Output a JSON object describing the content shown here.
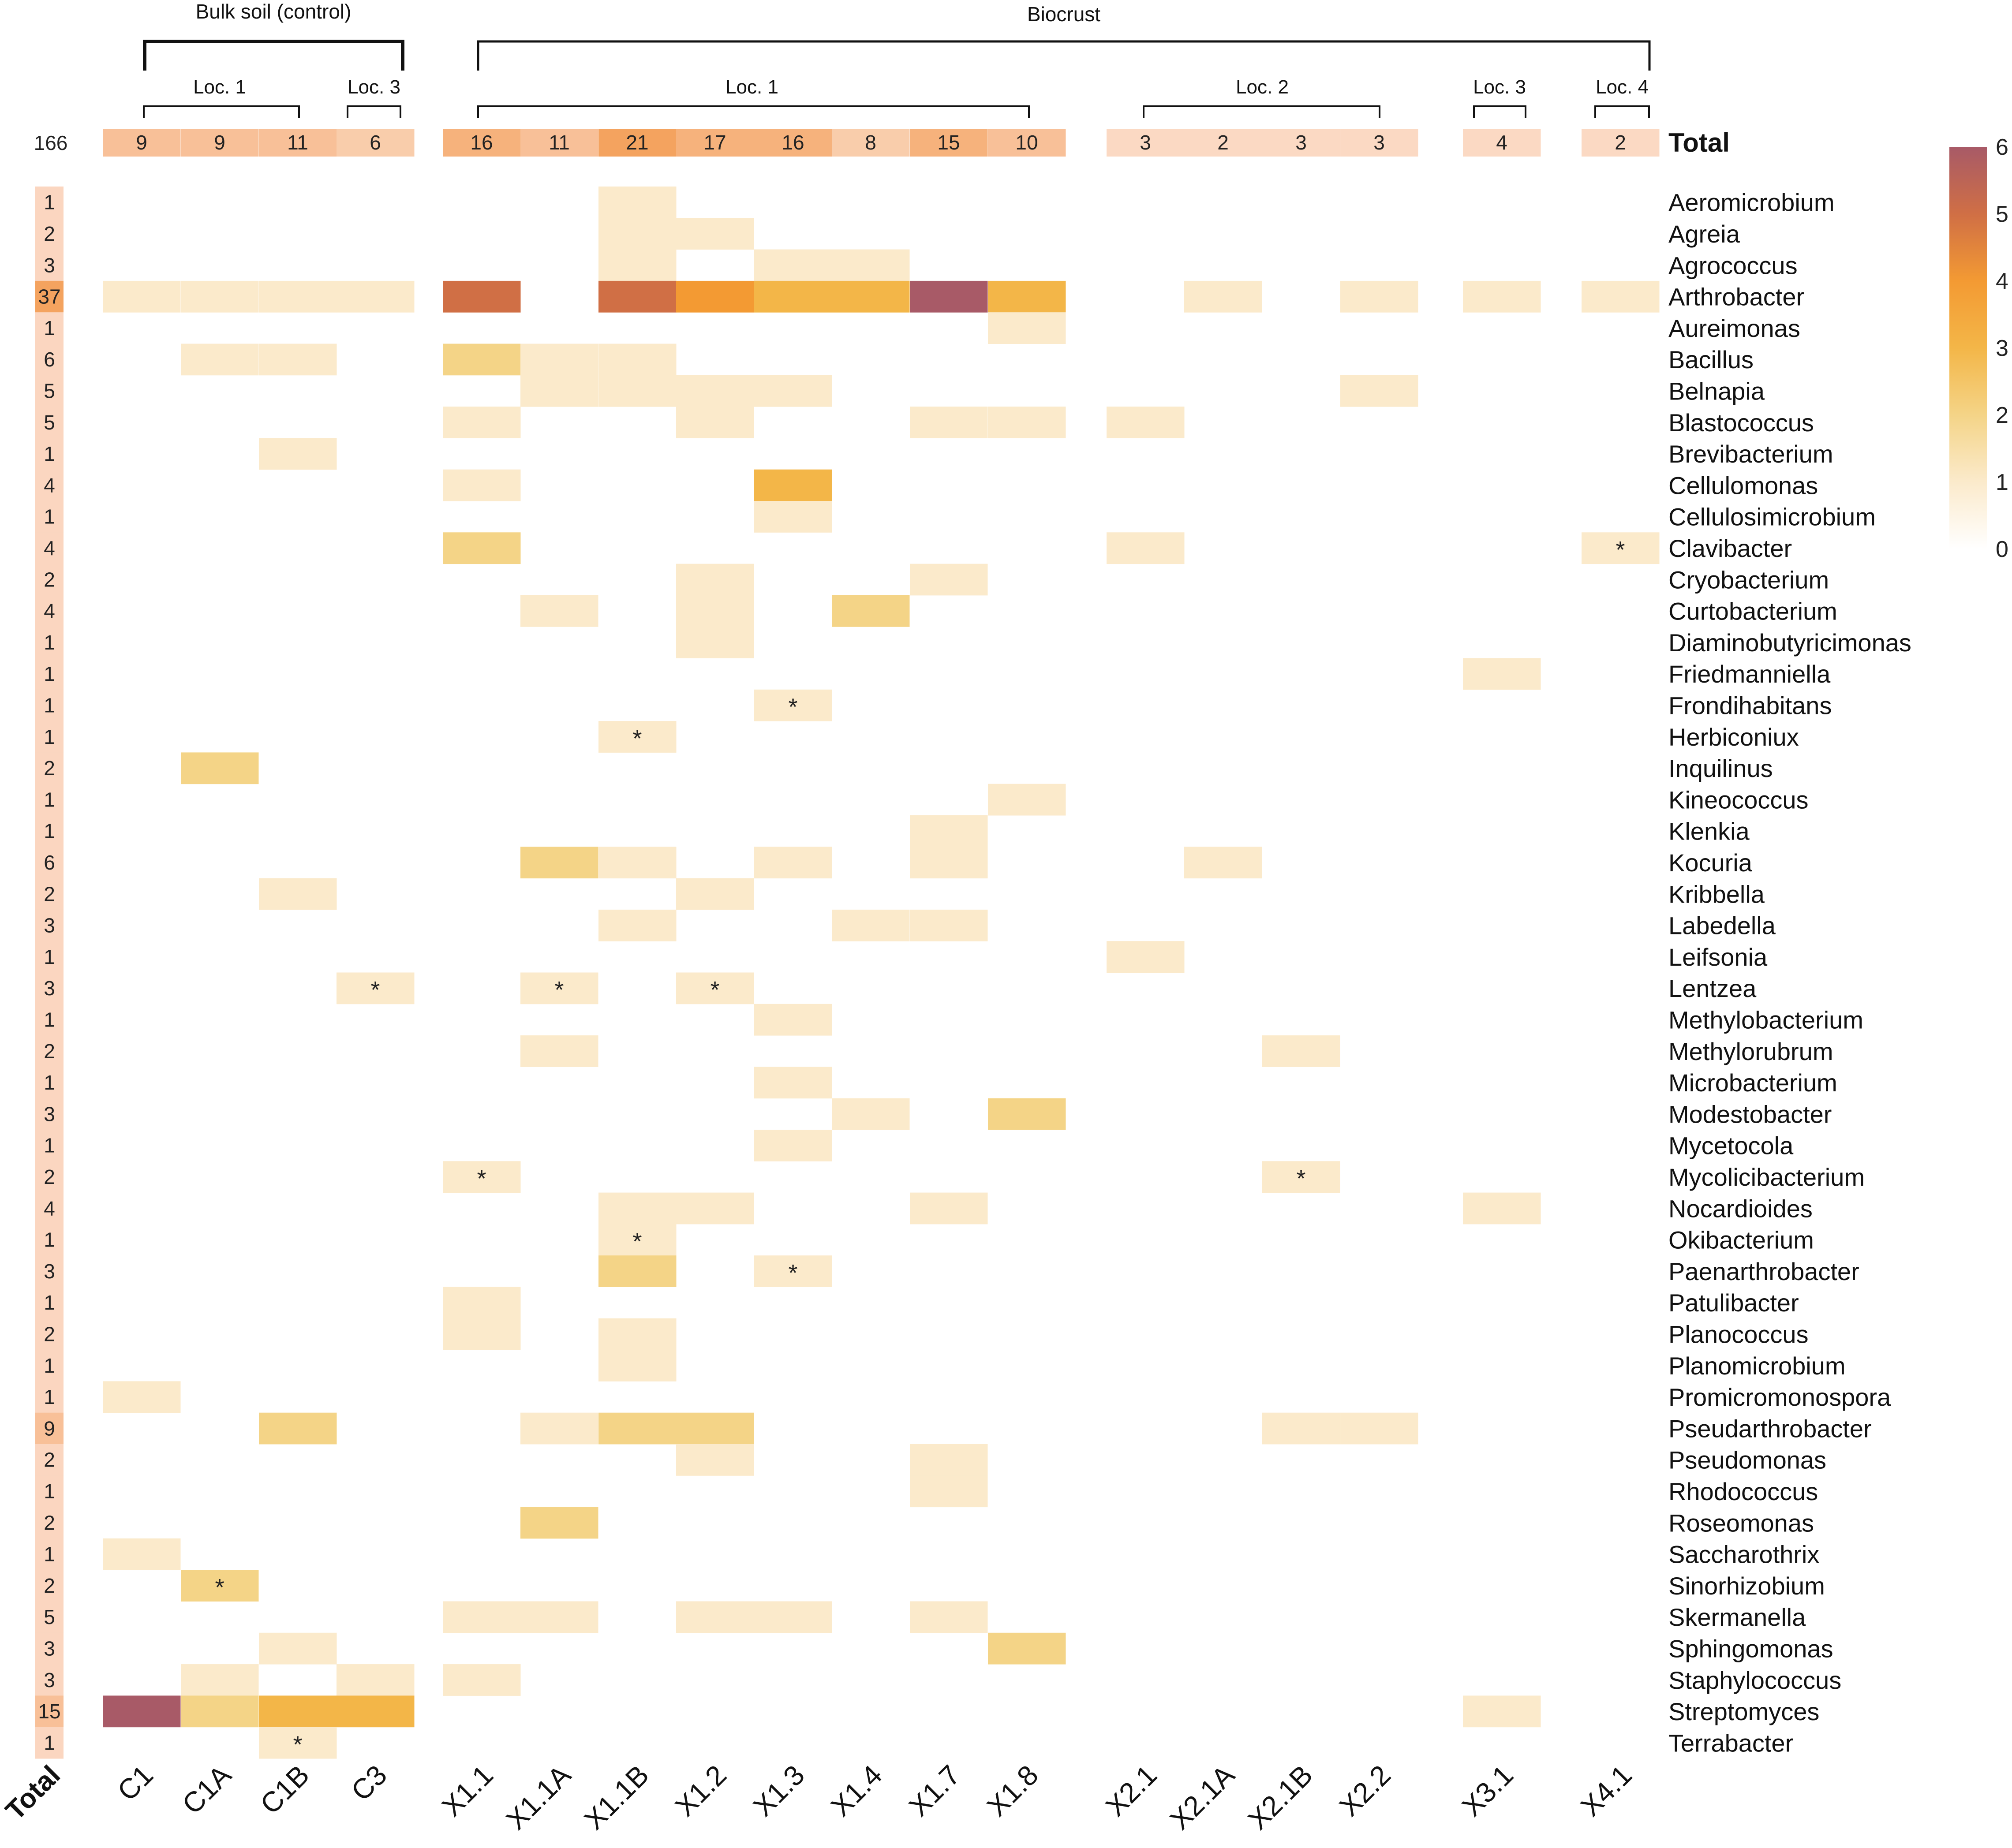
{
  "chart_data": {
    "type": "heatmap",
    "groups": [
      {
        "label": "Bulk soil (control)",
        "subgroups": [
          {
            "label": "Loc. 1"
          },
          {
            "label": "Loc. 3"
          }
        ]
      },
      {
        "label": "Biocrust",
        "subgroups": [
          {
            "label": "Loc. 1"
          },
          {
            "label": "Loc. 2"
          },
          {
            "label": "Loc. 3"
          },
          {
            "label": "Loc. 4"
          }
        ]
      }
    ],
    "columns": [
      "C1",
      "C1A",
      "C1B",
      "C3",
      "X1.1",
      "X1.1A",
      "X1.1B",
      "X1.2",
      "X1.3",
      "X1.4",
      "X1.7",
      "X1.8",
      "X2.1",
      "X2.1A",
      "X2.1B",
      "X2.2",
      "X3.1",
      "X4.1"
    ],
    "column_totals": [
      "9",
      "9",
      "11",
      "6",
      "16",
      "11",
      "21",
      "17",
      "16",
      "8",
      "15",
      "10",
      "3",
      "2",
      "3",
      "3",
      "4",
      "2"
    ],
    "grand_total": "166",
    "total_label": "Total",
    "bottom_total_label": "Total",
    "asterisk": "*",
    "colorbar": {
      "min": 0,
      "max": 6,
      "ticks": [
        "0",
        "1",
        "2",
        "3",
        "4",
        "5",
        "6"
      ],
      "colors": [
        "#ffffff",
        "#fbeacb",
        "#f4d487",
        "#f3b648",
        "#f39a33",
        "#d06f45",
        "#a85a67"
      ]
    },
    "rows": [
      {
        "genus": "Aeromicrobium",
        "total": "1",
        "cells": {
          "X1.1B": 1
        }
      },
      {
        "genus": "Agreia",
        "total": "2",
        "cells": {
          "X1.1B": 1,
          "X1.2": 1
        }
      },
      {
        "genus": "Agrococcus",
        "total": "3",
        "cells": {
          "X1.1B": 1,
          "X1.3": 1,
          "X1.4": 1
        }
      },
      {
        "genus": "Arthrobacter",
        "total": "37",
        "cells": {
          "C1": 1,
          "C1A": 1,
          "C1B": 1,
          "C3": 1,
          "X1.1": 5,
          "X1.1B": 5,
          "X1.2": 4,
          "X1.3": 3,
          "X1.4": 3,
          "X1.7": 6,
          "X1.8": 3,
          "X2.1A": 1,
          "X2.2": 1,
          "X3.1": 1,
          "X4.1": 1
        }
      },
      {
        "genus": "Aureimonas",
        "total": "1",
        "cells": {
          "X1.8": 1
        }
      },
      {
        "genus": "Bacillus",
        "total": "6",
        "cells": {
          "C1A": 1,
          "C1B": 1,
          "X1.1": 2,
          "X1.1A": 1,
          "X1.1B": 1
        }
      },
      {
        "genus": "Belnapia",
        "total": "5",
        "cells": {
          "X1.1A": 1,
          "X1.1B": 1,
          "X1.2": 1,
          "X1.3": 1,
          "X2.2": 1
        }
      },
      {
        "genus": "Blastococcus",
        "total": "5",
        "cells": {
          "X1.1": 1,
          "X1.2": 1,
          "X1.7": 1,
          "X1.8": 1,
          "X2.1": 1
        }
      },
      {
        "genus": "Brevibacterium",
        "total": "1",
        "cells": {
          "C1B": 1
        }
      },
      {
        "genus": "Cellulomonas",
        "total": "4",
        "cells": {
          "X1.1": 1,
          "X1.3": 3
        }
      },
      {
        "genus": "Cellulosimicrobium",
        "total": "1",
        "cells": {
          "X1.3": 1
        }
      },
      {
        "genus": "Clavibacter",
        "total": "4",
        "cells": {
          "X1.1": 2,
          "X2.1": 1,
          "X4.1": 1
        },
        "marks": [
          "X4.1"
        ]
      },
      {
        "genus": "Cryobacterium",
        "total": "2",
        "cells": {
          "X1.2": 1,
          "X1.7": 1
        }
      },
      {
        "genus": "Curtobacterium",
        "total": "4",
        "cells": {
          "X1.1A": 1,
          "X1.2": 1,
          "X1.4": 2
        }
      },
      {
        "genus": "Diaminobutyricimonas",
        "total": "1",
        "cells": {
          "X1.2": 1
        }
      },
      {
        "genus": "Friedmanniella",
        "total": "1",
        "cells": {
          "X3.1": 1
        }
      },
      {
        "genus": "Frondihabitans",
        "total": "1",
        "cells": {
          "X1.3": 1
        },
        "marks": [
          "X1.3"
        ]
      },
      {
        "genus": "Herbiconiux",
        "total": "1",
        "cells": {
          "X1.1B": 1
        },
        "marks": [
          "X1.1B"
        ]
      },
      {
        "genus": "Inquilinus",
        "total": "2",
        "cells": {
          "C1A": 2
        }
      },
      {
        "genus": "Kineococcus",
        "total": "1",
        "cells": {
          "X1.8": 1
        }
      },
      {
        "genus": "Klenkia",
        "total": "1",
        "cells": {
          "X1.7": 1
        }
      },
      {
        "genus": "Kocuria",
        "total": "6",
        "cells": {
          "X1.1A": 2,
          "X1.1B": 1,
          "X1.3": 1,
          "X1.7": 1,
          "X2.1A": 1
        }
      },
      {
        "genus": "Kribbella",
        "total": "2",
        "cells": {
          "C1B": 1,
          "X1.2": 1
        }
      },
      {
        "genus": "Labedella",
        "total": "3",
        "cells": {
          "X1.1B": 1,
          "X1.4": 1,
          "X1.7": 1
        }
      },
      {
        "genus": "Leifsonia",
        "total": "1",
        "cells": {
          "X2.1": 1
        }
      },
      {
        "genus": "Lentzea",
        "total": "3",
        "cells": {
          "C3": 1,
          "X1.1A": 1,
          "X1.2": 1
        },
        "marks": [
          "C3",
          "X1.1A",
          "X1.2"
        ]
      },
      {
        "genus": "Methylobacterium",
        "total": "1",
        "cells": {
          "X1.3": 1
        }
      },
      {
        "genus": "Methylorubrum",
        "total": "2",
        "cells": {
          "X1.1A": 1,
          "X2.1B": 1
        }
      },
      {
        "genus": "Microbacterium",
        "total": "1",
        "cells": {
          "X1.3": 1
        }
      },
      {
        "genus": "Modestobacter",
        "total": "3",
        "cells": {
          "X1.4": 1,
          "X1.8": 2
        }
      },
      {
        "genus": "Mycetocola",
        "total": "1",
        "cells": {
          "X1.3": 1
        }
      },
      {
        "genus": "Mycolicibacterium",
        "total": "2",
        "cells": {
          "X1.1": 1,
          "X2.1B": 1
        },
        "marks": [
          "X1.1",
          "X2.1B"
        ]
      },
      {
        "genus": "Nocardioides",
        "total": "4",
        "cells": {
          "X1.1B": 1,
          "X1.2": 1,
          "X1.7": 1,
          "X3.1": 1
        }
      },
      {
        "genus": "Okibacterium",
        "total": "1",
        "cells": {
          "X1.1B": 1
        },
        "marks": [
          "X1.1B"
        ]
      },
      {
        "genus": "Paenarthrobacter",
        "total": "3",
        "cells": {
          "X1.1B": 2,
          "X1.3": 1
        },
        "marks": [
          "X1.3"
        ]
      },
      {
        "genus": "Patulibacter",
        "total": "1",
        "cells": {
          "X1.1": 1
        }
      },
      {
        "genus": "Planococcus",
        "total": "2",
        "cells": {
          "X1.1": 1,
          "X1.1B": 1
        }
      },
      {
        "genus": "Planomicrobium",
        "total": "1",
        "cells": {
          "X1.1B": 1
        }
      },
      {
        "genus": "Promicromonospora",
        "total": "1",
        "cells": {
          "C1": 1
        }
      },
      {
        "genus": "Pseudarthrobacter",
        "total": "9",
        "cells": {
          "C1B": 2,
          "X1.1A": 1,
          "X1.1B": 2,
          "X1.2": 2,
          "X2.1B": 1,
          "X2.2": 1
        }
      },
      {
        "genus": "Pseudomonas",
        "total": "2",
        "cells": {
          "X1.2": 1,
          "X1.7": 1
        }
      },
      {
        "genus": "Rhodococcus",
        "total": "1",
        "cells": {
          "X1.7": 1
        }
      },
      {
        "genus": "Roseomonas",
        "total": "2",
        "cells": {
          "X1.1A": 2
        }
      },
      {
        "genus": "Saccharothrix",
        "total": "1",
        "cells": {
          "C1": 1
        }
      },
      {
        "genus": "Sinorhizobium",
        "total": "2",
        "cells": {
          "C1A": 2
        },
        "marks": [
          "C1A"
        ]
      },
      {
        "genus": "Skermanella",
        "total": "5",
        "cells": {
          "X1.1": 1,
          "X1.1A": 1,
          "X1.2": 1,
          "X1.3": 1,
          "X1.7": 1
        }
      },
      {
        "genus": "Sphingomonas",
        "total": "3",
        "cells": {
          "C1B": 1,
          "X1.8": 2
        }
      },
      {
        "genus": "Staphylococcus",
        "total": "3",
        "cells": {
          "C1A": 1,
          "C3": 1,
          "X1.1": 1
        }
      },
      {
        "genus": "Streptomyces",
        "total": "15",
        "cells": {
          "C1": 6,
          "C1A": 2,
          "C1B": 3,
          "C3": 3,
          "X3.1": 1
        }
      },
      {
        "genus": "Terrabacter",
        "total": "1",
        "cells": {
          "C1B": 1
        },
        "marks": [
          "C1B"
        ]
      }
    ]
  }
}
